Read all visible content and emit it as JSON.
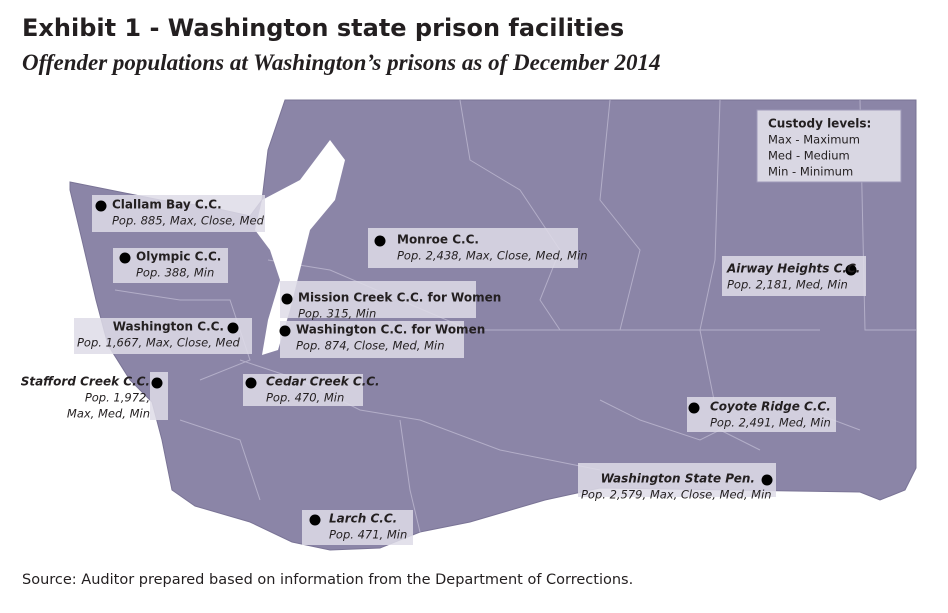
{
  "header": {
    "title": "Exhibit 1 - Washington state prison facilities",
    "subtitle": "Offender populations at Washington’s prisons as of December 2014"
  },
  "legend": {
    "title": "Custody levels:",
    "items": [
      "Max - Maximum",
      "Med - Medium",
      "Min - Minimum"
    ]
  },
  "facilities": [
    {
      "name": "Clallam Bay C.C.",
      "details": [
        "Pop. 885, Max, Close, Med"
      ]
    },
    {
      "name": "Olympic C.C.",
      "details": [
        "Pop. 388, Min"
      ]
    },
    {
      "name": "Monroe C.C.",
      "details": [
        "Pop. 2,438, Max, Close, Med, Min"
      ]
    },
    {
      "name": "Airway Heights C.C.",
      "details": [
        "Pop. 2,181, Med, Min"
      ]
    },
    {
      "name": "Mission Creek C.C. for Women",
      "details": [
        "Pop. 315, Min"
      ]
    },
    {
      "name": "Washington C.C.",
      "details": [
        "Pop. 1,667, Max, Close, Med"
      ]
    },
    {
      "name": "Washington C.C. for Women",
      "details": [
        "Pop. 874, Close, Med, Min"
      ]
    },
    {
      "name": "Stafford Creek C.C.",
      "details": [
        "Pop. 1,972,",
        "Max, Med, Min"
      ]
    },
    {
      "name": "Cedar Creek C.C.",
      "details": [
        "Pop. 470, Min"
      ]
    },
    {
      "name": "Coyote Ridge C.C.",
      "details": [
        "Pop. 2,491,  Med, Min"
      ]
    },
    {
      "name": "Washington State Pen.",
      "details": [
        "Pop. 2,579, Max, Close, Med, Min"
      ]
    },
    {
      "name": "Larch C.C.",
      "details": [
        "Pop. 471, Min"
      ]
    }
  ],
  "source": "Source: Auditor prepared based on information from the Department of Corrections."
}
